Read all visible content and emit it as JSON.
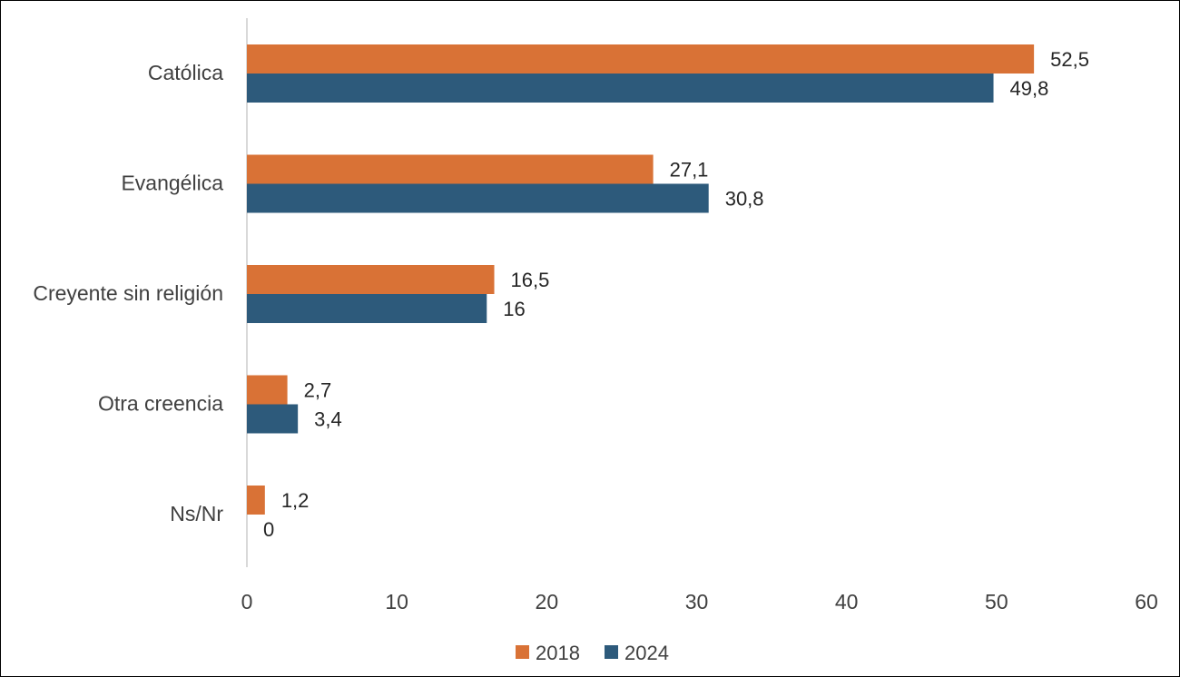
{
  "chart_data": {
    "type": "bar",
    "orientation": "horizontal",
    "categories": [
      "Católica",
      "Evangélica",
      "Creyente sin religión",
      "Otra creencia",
      "Ns/Nr"
    ],
    "series": [
      {
        "name": "2018",
        "color": "#D97236",
        "values": [
          52.5,
          27.1,
          16.5,
          2.7,
          1.2
        ],
        "labels": [
          "52,5",
          "27,1",
          "16,5",
          "2,7",
          "1,2"
        ]
      },
      {
        "name": "2024",
        "color": "#2D5A7B",
        "values": [
          49.8,
          30.8,
          16,
          3.4,
          0
        ],
        "labels": [
          "49,8",
          "30,8",
          "16",
          "3,4",
          "0"
        ]
      }
    ],
    "xlim": [
      0,
      60
    ],
    "xticks": [
      "0",
      "10",
      "20",
      "30",
      "40",
      "50",
      "60"
    ],
    "grid": false,
    "legend": "bottom"
  }
}
